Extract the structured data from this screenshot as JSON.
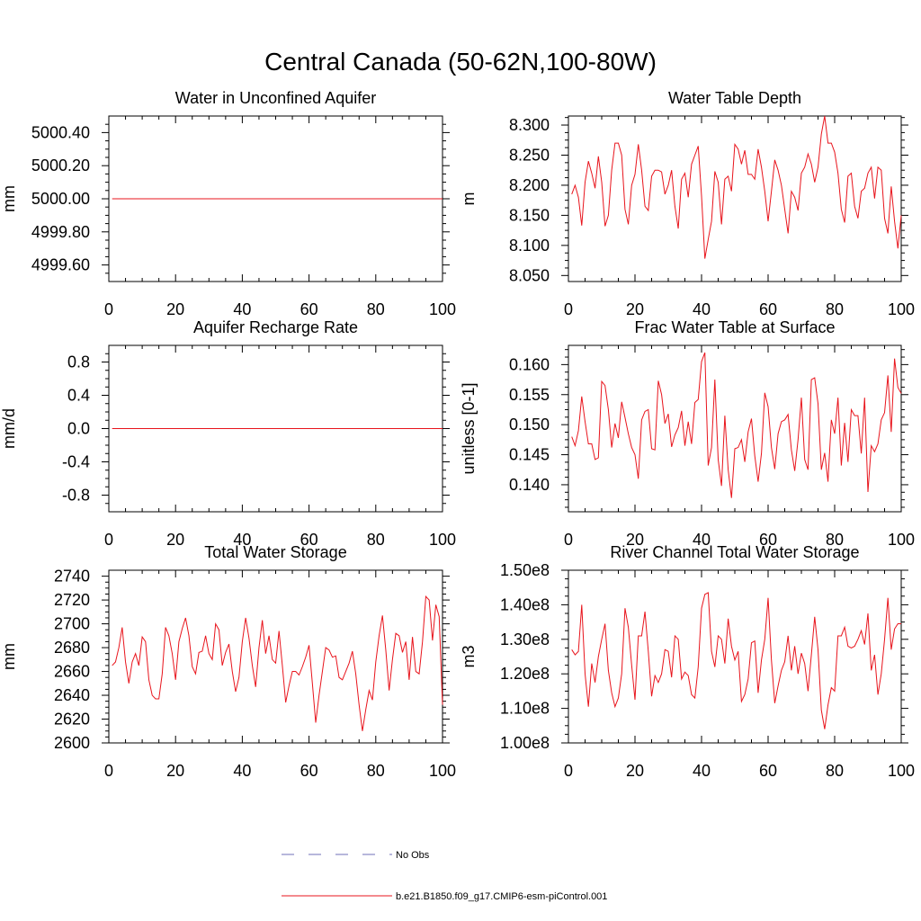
{
  "figure": {
    "title": "Central Canada (50-62N,100-80W)"
  },
  "legend": {
    "items": [
      {
        "label": "No Obs",
        "style": "dashed",
        "color": "#6f6fb8"
      },
      {
        "label": "b.e21.B1850.f09_g17.CMIP6-esm-piControl.001",
        "style": "solid",
        "color": "#e8141c"
      }
    ]
  },
  "chart_data": [
    {
      "id": "p1",
      "type": "line",
      "title": "Water in Unconfined Aquifer",
      "ylabel": "mm",
      "xlabel": "",
      "xlim": [
        0,
        100
      ],
      "ylim": [
        4999.5,
        5000.5
      ],
      "xticks": [
        0,
        20,
        40,
        60,
        80,
        100
      ],
      "xtick_labels": [
        "0",
        "20",
        "40",
        "60",
        "80",
        "100"
      ],
      "yticks": [
        4999.6,
        4999.8,
        5000.0,
        5000.2,
        5000.4
      ],
      "ytick_labels": [
        "4999.60",
        "4999.80",
        "5000.00",
        "5000.20",
        "5000.40"
      ],
      "series": [
        {
          "name": "b.e21.B1850.f09_g17.CMIP6-esm-piControl.001",
          "color": "#e8141c",
          "x": [
            1,
            100
          ],
          "y": [
            5000.0,
            5000.0
          ]
        }
      ]
    },
    {
      "id": "p2",
      "type": "line",
      "title": "Water Table Depth",
      "ylabel": "m",
      "xlabel": "",
      "xlim": [
        0,
        100
      ],
      "ylim": [
        8.04,
        8.315
      ],
      "xticks": [
        0,
        20,
        40,
        60,
        80,
        100
      ],
      "xtick_labels": [
        "0",
        "20",
        "40",
        "60",
        "80",
        "100"
      ],
      "yticks": [
        8.05,
        8.1,
        8.15,
        8.2,
        8.25,
        8.3
      ],
      "ytick_labels": [
        "8.050",
        "8.100",
        "8.150",
        "8.200",
        "8.250",
        "8.300"
      ],
      "series": [
        {
          "name": "b.e21.B1850.f09_g17.CMIP6-esm-piControl.001",
          "color": "#e8141c",
          "x_start": 1,
          "x_step": 1,
          "y": [
            8.185,
            8.2,
            8.18,
            8.133,
            8.205,
            8.24,
            8.22,
            8.195,
            8.248,
            8.205,
            8.132,
            8.15,
            8.225,
            8.27,
            8.27,
            8.25,
            8.16,
            8.135,
            8.2,
            8.218,
            8.268,
            8.225,
            8.165,
            8.158,
            8.215,
            8.225,
            8.225,
            8.222,
            8.185,
            8.2,
            8.225,
            8.165,
            8.128,
            8.21,
            8.22,
            8.18,
            8.235,
            8.25,
            8.265,
            8.182,
            8.078,
            8.11,
            8.14,
            8.223,
            8.205,
            8.135,
            8.21,
            8.215,
            8.19,
            8.268,
            8.26,
            8.235,
            8.258,
            8.218,
            8.218,
            8.21,
            8.26,
            8.23,
            8.19,
            8.14,
            8.19,
            8.242,
            8.225,
            8.2,
            8.16,
            8.12,
            8.19,
            8.18,
            8.158,
            8.22,
            8.23,
            8.252,
            8.235,
            8.205,
            8.23,
            8.285,
            8.315,
            8.27,
            8.27,
            8.255,
            8.22,
            8.16,
            8.138,
            8.215,
            8.22,
            8.165,
            8.145,
            8.19,
            8.195,
            8.22,
            8.23,
            8.178,
            8.23,
            8.225,
            8.145,
            8.12,
            8.198,
            8.14,
            8.095,
            8.15
          ]
        }
      ]
    },
    {
      "id": "p3",
      "type": "line",
      "title": "Aquifer Recharge Rate",
      "ylabel": "mm/d",
      "xlabel": "",
      "xlim": [
        0,
        100
      ],
      "ylim": [
        -1.0,
        1.0
      ],
      "xticks": [
        0,
        20,
        40,
        60,
        80,
        100
      ],
      "xtick_labels": [
        "0",
        "20",
        "40",
        "60",
        "80",
        "100"
      ],
      "yticks": [
        -0.8,
        -0.4,
        0.0,
        0.4,
        0.8
      ],
      "ytick_labels": [
        "-0.8",
        "-0.4",
        "0.0",
        "0.4",
        "0.8"
      ],
      "series": [
        {
          "name": "b.e21.B1850.f09_g17.CMIP6-esm-piControl.001",
          "color": "#e8141c",
          "x": [
            1,
            100
          ],
          "y": [
            0.0,
            0.0
          ]
        }
      ]
    },
    {
      "id": "p4",
      "type": "line",
      "title": "Frac Water Table at Surface",
      "ylabel": "unitless [0-1]",
      "xlabel": "",
      "xlim": [
        0,
        100
      ],
      "ylim": [
        0.1355,
        0.1632
      ],
      "xticks": [
        0,
        20,
        40,
        60,
        80,
        100
      ],
      "xtick_labels": [
        "0",
        "20",
        "40",
        "60",
        "80",
        "100"
      ],
      "yticks": [
        0.14,
        0.145,
        0.15,
        0.155,
        0.16
      ],
      "ytick_labels": [
        "0.140",
        "0.145",
        "0.150",
        "0.155",
        "0.160"
      ],
      "series": [
        {
          "name": "b.e21.B1850.f09_g17.CMIP6-esm-piControl.001",
          "color": "#e8141c",
          "x_start": 1,
          "x_step": 1,
          "y": [
            0.148,
            0.1465,
            0.149,
            0.1547,
            0.1505,
            0.1468,
            0.1468,
            0.1442,
            0.1445,
            0.1572,
            0.1565,
            0.1525,
            0.1462,
            0.1502,
            0.1478,
            0.1538,
            0.1512,
            0.1485,
            0.1462,
            0.145,
            0.141,
            0.1508,
            0.1522,
            0.1525,
            0.146,
            0.1458,
            0.1573,
            0.155,
            0.1502,
            0.1518,
            0.1463,
            0.1483,
            0.1495,
            0.1523,
            0.1465,
            0.1505,
            0.1468,
            0.1537,
            0.1542,
            0.1605,
            0.162,
            0.1432,
            0.1462,
            0.1575,
            0.1442,
            0.1398,
            0.1515,
            0.1425,
            0.1378,
            0.146,
            0.1462,
            0.1475,
            0.1438,
            0.1488,
            0.151,
            0.1448,
            0.1405,
            0.1452,
            0.1553,
            0.153,
            0.1462,
            0.1426,
            0.1485,
            0.1505,
            0.1508,
            0.1517,
            0.1458,
            0.1423,
            0.1475,
            0.1545,
            0.1442,
            0.1425,
            0.1575,
            0.1578,
            0.1535,
            0.1425,
            0.1453,
            0.1405,
            0.1508,
            0.1485,
            0.1545,
            0.1432,
            0.1503,
            0.1438,
            0.1525,
            0.1515,
            0.1515,
            0.1452,
            0.1545,
            0.1388,
            0.1465,
            0.1455,
            0.1468,
            0.1508,
            0.152,
            0.1582,
            0.1488,
            0.161,
            0.1562,
            0.1552
          ]
        }
      ]
    },
    {
      "id": "p5",
      "type": "line",
      "title": "Total Water Storage",
      "ylabel": "mm",
      "xlabel": "",
      "xlim": [
        0,
        100
      ],
      "ylim": [
        2600,
        2745
      ],
      "xticks": [
        0,
        20,
        40,
        60,
        80,
        100
      ],
      "xtick_labels": [
        "0",
        "20",
        "40",
        "60",
        "80",
        "100"
      ],
      "yticks": [
        2600,
        2620,
        2640,
        2660,
        2680,
        2700,
        2720,
        2740
      ],
      "ytick_labels": [
        "2600",
        "2620",
        "2640",
        "2660",
        "2680",
        "2700",
        "2720",
        "2740"
      ],
      "series": [
        {
          "name": "b.e21.B1850.f09_g17.CMIP6-esm-piControl.001",
          "color": "#e8141c",
          "x_start": 1,
          "x_step": 1,
          "y": [
            2665,
            2668,
            2680,
            2697,
            2668,
            2650,
            2668,
            2675,
            2665,
            2689,
            2685,
            2653,
            2640,
            2637,
            2637,
            2658,
            2697,
            2690,
            2675,
            2653,
            2685,
            2696,
            2705,
            2690,
            2664,
            2658,
            2676,
            2677,
            2690,
            2675,
            2670,
            2700,
            2695,
            2665,
            2676,
            2683,
            2660,
            2643,
            2655,
            2685,
            2705,
            2688,
            2665,
            2647,
            2680,
            2703,
            2675,
            2690,
            2670,
            2667,
            2694,
            2665,
            2634,
            2648,
            2660,
            2660,
            2657,
            2664,
            2672,
            2682,
            2650,
            2617,
            2640,
            2660,
            2680,
            2678,
            2672,
            2673,
            2655,
            2653,
            2660,
            2667,
            2677,
            2658,
            2632,
            2610,
            2628,
            2644,
            2636,
            2668,
            2690,
            2707,
            2678,
            2644,
            2670,
            2692,
            2690,
            2676,
            2685,
            2653,
            2689,
            2660,
            2658,
            2685,
            2723,
            2720,
            2686,
            2716,
            2706,
            2632
          ]
        }
      ]
    },
    {
      "id": "p6",
      "type": "line",
      "title": "River Channel Total Water Storage",
      "ylabel": "m3",
      "xlabel": "",
      "xlim": [
        0,
        100
      ],
      "ylim": [
        100000000.0,
        150000000.0
      ],
      "xticks": [
        0,
        20,
        40,
        60,
        80,
        100
      ],
      "xtick_labels": [
        "0",
        "20",
        "40",
        "60",
        "80",
        "100"
      ],
      "yticks": [
        100000000.0,
        110000000.0,
        120000000.0,
        130000000.0,
        140000000.0,
        150000000.0
      ],
      "ytick_labels": [
        "1.00e8",
        "1.10e8",
        "1.20e8",
        "1.30e8",
        "1.40e8",
        "1.50e8"
      ],
      "series": [
        {
          "name": "b.e21.B1850.f09_g17.CMIP6-esm-piControl.001",
          "color": "#e8141c",
          "x_start": 1,
          "x_step": 1,
          "y": [
            127000000.0,
            125500000.0,
            126500000.0,
            140000000.0,
            120000000.0,
            110500000.0,
            123000000.0,
            117500000.0,
            125000000.0,
            130000000.0,
            134500000.0,
            121000000.0,
            114500000.0,
            110500000.0,
            113000000.0,
            120000000.0,
            139000000.0,
            133500000.0,
            122500000.0,
            112500000.0,
            131000000.0,
            131000000.0,
            138000000.0,
            126500000.0,
            113500000.0,
            119500000.0,
            117500000.0,
            120000000.0,
            127000000.0,
            126500000.0,
            119000000.0,
            131000000.0,
            130000000.0,
            118500000.0,
            120500000.0,
            119500000.0,
            114000000.0,
            113000000.0,
            122000000.0,
            139000000.0,
            143000000.0,
            143500000.0,
            126500000.0,
            122000000.0,
            131000000.0,
            130000000.0,
            123000000.0,
            136000000.0,
            128000000.0,
            124000000.0,
            126500000.0,
            112000000.0,
            114000000.0,
            118500000.0,
            129000000.0,
            129500000.0,
            114500000.0,
            124000000.0,
            130000000.0,
            142000000.0,
            124000000.0,
            111500000.0,
            116500000.0,
            121000000.0,
            123500000.0,
            131000000.0,
            121000000.0,
            128000000.0,
            120000000.0,
            126000000.0,
            123000000.0,
            115000000.0,
            125500000.0,
            136500000.0,
            127000000.0,
            109500000.0,
            104000000.0,
            111000000.0,
            116000000.0,
            115000000.0,
            131000000.0,
            131000000.0,
            133500000.0,
            128000000.0,
            127500000.0,
            128000000.0,
            130000000.0,
            132500000.0,
            128500000.0,
            137500000.0,
            121000000.0,
            125500000.0,
            114000000.0,
            120000000.0,
            130000000.0,
            142000000.0,
            127000000.0,
            133000000.0,
            134500000.0,
            134500000.0
          ]
        }
      ]
    }
  ]
}
